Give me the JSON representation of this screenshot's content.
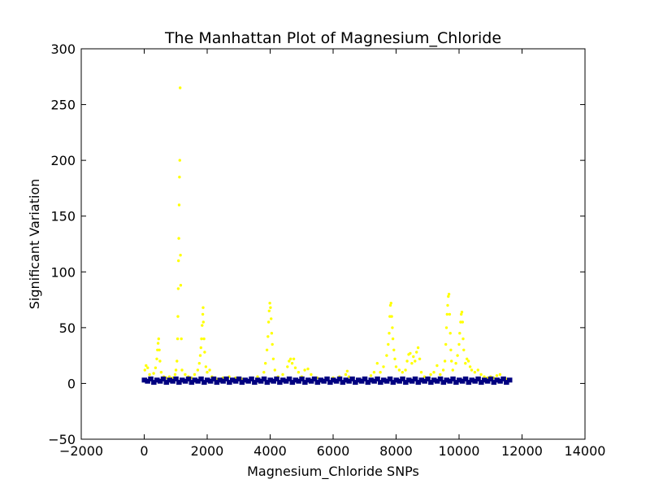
{
  "chart_data": {
    "type": "scatter",
    "title": "The Manhattan Plot of Magnesium_Chloride",
    "xlabel": "Magnesium_Chloride SNPs",
    "ylabel": "Significant Variation",
    "xlim": [
      -2000,
      14000
    ],
    "ylim": [
      -50,
      300
    ],
    "xticks": [
      -2000,
      0,
      2000,
      4000,
      6000,
      8000,
      10000,
      12000,
      14000
    ],
    "yticks": [
      -50,
      0,
      50,
      100,
      150,
      200,
      250,
      300
    ],
    "xtick_labels": [
      "−2000",
      "0",
      "2000",
      "4000",
      "6000",
      "8000",
      "10000",
      "12000",
      "14000"
    ],
    "ytick_labels": [
      "−50",
      "0",
      "50",
      "100",
      "150",
      "200",
      "250",
      "300"
    ],
    "grid": false,
    "legend": "none",
    "series": [
      {
        "color": "#ffff00",
        "points": [
          [
            20,
            12
          ],
          [
            60,
            16
          ],
          [
            110,
            14
          ],
          [
            170,
            8
          ],
          [
            220,
            5
          ],
          [
            300,
            9
          ],
          [
            360,
            14
          ],
          [
            400,
            22
          ],
          [
            420,
            30
          ],
          [
            440,
            36
          ],
          [
            460,
            40
          ],
          [
            480,
            30
          ],
          [
            500,
            20
          ],
          [
            540,
            10
          ],
          [
            620,
            6
          ],
          [
            700,
            5
          ],
          [
            800,
            6
          ],
          [
            900,
            5
          ],
          [
            980,
            8
          ],
          [
            1010,
            12
          ],
          [
            1040,
            20
          ],
          [
            1060,
            40
          ],
          [
            1070,
            60
          ],
          [
            1080,
            85
          ],
          [
            1090,
            110
          ],
          [
            1100,
            130
          ],
          [
            1110,
            160
          ],
          [
            1120,
            185
          ],
          [
            1130,
            200
          ],
          [
            1140,
            265
          ],
          [
            1150,
            115
          ],
          [
            1160,
            88
          ],
          [
            1180,
            40
          ],
          [
            1200,
            12
          ],
          [
            1300,
            8
          ],
          [
            1400,
            6
          ],
          [
            1500,
            5
          ],
          [
            1600,
            8
          ],
          [
            1700,
            12
          ],
          [
            1750,
            18
          ],
          [
            1780,
            25
          ],
          [
            1800,
            32
          ],
          [
            1820,
            40
          ],
          [
            1840,
            52
          ],
          [
            1860,
            62
          ],
          [
            1870,
            68
          ],
          [
            1880,
            55
          ],
          [
            1900,
            40
          ],
          [
            1920,
            28
          ],
          [
            1960,
            15
          ],
          [
            2000,
            10
          ],
          [
            2080,
            12
          ],
          [
            2150,
            6
          ],
          [
            2300,
            4
          ],
          [
            2500,
            5
          ],
          [
            2700,
            6
          ],
          [
            2900,
            5
          ],
          [
            3100,
            4
          ],
          [
            3400,
            5
          ],
          [
            3600,
            6
          ],
          [
            3800,
            10
          ],
          [
            3850,
            18
          ],
          [
            3900,
            30
          ],
          [
            3930,
            42
          ],
          [
            3950,
            55
          ],
          [
            3970,
            65
          ],
          [
            3990,
            72
          ],
          [
            4010,
            68
          ],
          [
            4030,
            58
          ],
          [
            4050,
            45
          ],
          [
            4070,
            35
          ],
          [
            4100,
            22
          ],
          [
            4150,
            12
          ],
          [
            4250,
            6
          ],
          [
            4400,
            8
          ],
          [
            4550,
            15
          ],
          [
            4600,
            20
          ],
          [
            4650,
            22
          ],
          [
            4700,
            18
          ],
          [
            4750,
            22
          ],
          [
            4800,
            14
          ],
          [
            4900,
            10
          ],
          [
            5000,
            6
          ],
          [
            5100,
            12
          ],
          [
            5200,
            13
          ],
          [
            5300,
            8
          ],
          [
            5500,
            5
          ],
          [
            5800,
            4
          ],
          [
            6000,
            5
          ],
          [
            6200,
            6
          ],
          [
            6400,
            8
          ],
          [
            6450,
            11
          ],
          [
            6500,
            6
          ],
          [
            6800,
            4
          ],
          [
            7000,
            5
          ],
          [
            7200,
            7
          ],
          [
            7300,
            10
          ],
          [
            7400,
            18
          ],
          [
            7500,
            10
          ],
          [
            7600,
            15
          ],
          [
            7700,
            25
          ],
          [
            7750,
            35
          ],
          [
            7780,
            45
          ],
          [
            7800,
            60
          ],
          [
            7820,
            70
          ],
          [
            7840,
            72
          ],
          [
            7860,
            60
          ],
          [
            7880,
            50
          ],
          [
            7900,
            40
          ],
          [
            7930,
            30
          ],
          [
            7960,
            22
          ],
          [
            8000,
            15
          ],
          [
            8100,
            12
          ],
          [
            8200,
            10
          ],
          [
            8300,
            12
          ],
          [
            8350,
            20
          ],
          [
            8400,
            26
          ],
          [
            8450,
            27
          ],
          [
            8500,
            18
          ],
          [
            8550,
            24
          ],
          [
            8600,
            20
          ],
          [
            8650,
            28
          ],
          [
            8700,
            32
          ],
          [
            8750,
            22
          ],
          [
            8800,
            10
          ],
          [
            8900,
            6
          ],
          [
            9000,
            5
          ],
          [
            9100,
            8
          ],
          [
            9200,
            10
          ],
          [
            9300,
            16
          ],
          [
            9400,
            8
          ],
          [
            9500,
            12
          ],
          [
            9550,
            20
          ],
          [
            9580,
            35
          ],
          [
            9600,
            50
          ],
          [
            9620,
            62
          ],
          [
            9640,
            70
          ],
          [
            9660,
            78
          ],
          [
            9680,
            80
          ],
          [
            9700,
            62
          ],
          [
            9720,
            45
          ],
          [
            9740,
            30
          ],
          [
            9760,
            20
          ],
          [
            9800,
            12
          ],
          [
            9900,
            18
          ],
          [
            9950,
            25
          ],
          [
            10000,
            35
          ],
          [
            10020,
            45
          ],
          [
            10050,
            55
          ],
          [
            10070,
            62
          ],
          [
            10090,
            64
          ],
          [
            10110,
            55
          ],
          [
            10130,
            40
          ],
          [
            10150,
            30
          ],
          [
            10200,
            18
          ],
          [
            10250,
            22
          ],
          [
            10300,
            20
          ],
          [
            10350,
            15
          ],
          [
            10400,
            12
          ],
          [
            10500,
            10
          ],
          [
            10600,
            12
          ],
          [
            10700,
            8
          ],
          [
            10800,
            6
          ],
          [
            10900,
            5
          ],
          [
            11000,
            6
          ],
          [
            11100,
            5
          ],
          [
            11200,
            7
          ],
          [
            11300,
            8
          ],
          [
            11400,
            5
          ],
          [
            11500,
            4
          ]
        ]
      },
      {
        "color": "#000080",
        "points": [
          [
            0,
            3
          ],
          [
            100,
            2
          ],
          [
            200,
            4
          ],
          [
            300,
            1
          ],
          [
            400,
            3
          ],
          [
            500,
            2
          ],
          [
            600,
            4
          ],
          [
            700,
            1
          ],
          [
            800,
            3
          ],
          [
            900,
            2
          ],
          [
            1000,
            4
          ],
          [
            1100,
            1
          ],
          [
            1200,
            3
          ],
          [
            1300,
            2
          ],
          [
            1400,
            4
          ],
          [
            1500,
            1
          ],
          [
            1600,
            3
          ],
          [
            1700,
            2
          ],
          [
            1800,
            4
          ],
          [
            1900,
            1
          ],
          [
            2000,
            3
          ],
          [
            2100,
            2
          ],
          [
            2200,
            4
          ],
          [
            2300,
            1
          ],
          [
            2400,
            3
          ],
          [
            2500,
            2
          ],
          [
            2600,
            4
          ],
          [
            2700,
            1
          ],
          [
            2800,
            3
          ],
          [
            2900,
            2
          ],
          [
            3000,
            4
          ],
          [
            3100,
            1
          ],
          [
            3200,
            3
          ],
          [
            3300,
            2
          ],
          [
            3400,
            4
          ],
          [
            3500,
            1
          ],
          [
            3600,
            3
          ],
          [
            3700,
            2
          ],
          [
            3800,
            4
          ],
          [
            3900,
            1
          ],
          [
            4000,
            3
          ],
          [
            4100,
            2
          ],
          [
            4200,
            4
          ],
          [
            4300,
            1
          ],
          [
            4400,
            3
          ],
          [
            4500,
            2
          ],
          [
            4600,
            4
          ],
          [
            4700,
            1
          ],
          [
            4800,
            3
          ],
          [
            4900,
            2
          ],
          [
            5000,
            4
          ],
          [
            5100,
            1
          ],
          [
            5200,
            3
          ],
          [
            5300,
            2
          ],
          [
            5400,
            4
          ],
          [
            5500,
            1
          ],
          [
            5600,
            3
          ],
          [
            5700,
            2
          ],
          [
            5800,
            4
          ],
          [
            5900,
            1
          ],
          [
            6000,
            3
          ],
          [
            6100,
            2
          ],
          [
            6200,
            4
          ],
          [
            6300,
            1
          ],
          [
            6400,
            3
          ],
          [
            6500,
            2
          ],
          [
            6600,
            4
          ],
          [
            6700,
            1
          ],
          [
            6800,
            3
          ],
          [
            6900,
            2
          ],
          [
            7000,
            4
          ],
          [
            7100,
            1
          ],
          [
            7200,
            3
          ],
          [
            7300,
            2
          ],
          [
            7400,
            4
          ],
          [
            7500,
            1
          ],
          [
            7600,
            3
          ],
          [
            7700,
            2
          ],
          [
            7800,
            4
          ],
          [
            7900,
            1
          ],
          [
            8000,
            3
          ],
          [
            8100,
            2
          ],
          [
            8200,
            4
          ],
          [
            8300,
            1
          ],
          [
            8400,
            3
          ],
          [
            8500,
            2
          ],
          [
            8600,
            4
          ],
          [
            8700,
            1
          ],
          [
            8800,
            3
          ],
          [
            8900,
            2
          ],
          [
            9000,
            4
          ],
          [
            9100,
            1
          ],
          [
            9200,
            3
          ],
          [
            9300,
            2
          ],
          [
            9400,
            4
          ],
          [
            9500,
            1
          ],
          [
            9600,
            3
          ],
          [
            9700,
            2
          ],
          [
            9800,
            4
          ],
          [
            9900,
            1
          ],
          [
            10000,
            3
          ],
          [
            10100,
            2
          ],
          [
            10200,
            4
          ],
          [
            10300,
            1
          ],
          [
            10400,
            3
          ],
          [
            10500,
            2
          ],
          [
            10600,
            4
          ],
          [
            10700,
            1
          ],
          [
            10800,
            3
          ],
          [
            10900,
            2
          ],
          [
            11000,
            4
          ],
          [
            11100,
            1
          ],
          [
            11200,
            3
          ],
          [
            11300,
            2
          ],
          [
            11400,
            4
          ],
          [
            11500,
            1
          ],
          [
            11600,
            3
          ]
        ]
      }
    ]
  }
}
